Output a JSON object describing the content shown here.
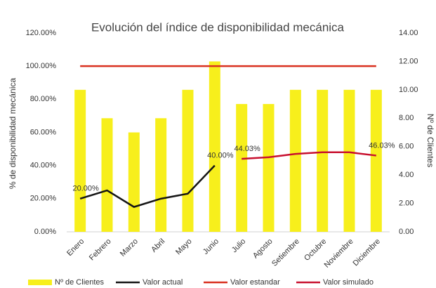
{
  "chart_data": {
    "type": "bar",
    "title": "Evolución del índice de disponibilidad mecánica",
    "y_label": "% de disponibilidad mecánica",
    "y2_label": "Nº de Clientes",
    "categories": [
      "Enero",
      "Febrero",
      "Marzo",
      "Abril",
      "Mayo",
      "Junio",
      "Julio",
      "Agosto",
      "Setiembre",
      "Octubre",
      "Noviembre",
      "Diciembre"
    ],
    "ylim": [
      0,
      120
    ],
    "yticks": [
      {
        "value": 0,
        "label": "0.00%"
      },
      {
        "value": 20,
        "label": "20.00%"
      },
      {
        "value": 40,
        "label": "40.00%"
      },
      {
        "value": 60,
        "label": "60.00%"
      },
      {
        "value": 80,
        "label": "80.00%"
      },
      {
        "value": 100,
        "label": "100.00%"
      },
      {
        "value": 120,
        "label": "120.00%"
      }
    ],
    "y2lim": [
      0,
      14
    ],
    "y2ticks": [
      {
        "value": 0,
        "label": "0.00"
      },
      {
        "value": 2,
        "label": "2.00"
      },
      {
        "value": 4,
        "label": "4.00"
      },
      {
        "value": 6,
        "label": "6.00"
      },
      {
        "value": 8,
        "label": "8.00"
      },
      {
        "value": 10,
        "label": "10.00"
      },
      {
        "value": 12,
        "label": "12.00"
      },
      {
        "value": 14,
        "label": "14.00"
      }
    ],
    "legend": "bottom",
    "series": [
      {
        "name": "Nº de Clientes",
        "type": "bar",
        "axis": "y2",
        "color": "#f7ef1c",
        "values": [
          10,
          8,
          7,
          8,
          10,
          12,
          9,
          9,
          10,
          10,
          10,
          10
        ]
      },
      {
        "name": "Valor actual",
        "type": "line",
        "axis": "y",
        "color": "#151515",
        "values": [
          20,
          25,
          15,
          20,
          23,
          40,
          null,
          null,
          null,
          null,
          null,
          null
        ],
        "value_labels": [
          "20.00%",
          null,
          null,
          null,
          null,
          "40.00%",
          null,
          null,
          null,
          null,
          null,
          null
        ]
      },
      {
        "name": "Valor estandar",
        "type": "line",
        "axis": "y",
        "color": "#d9301f",
        "values": [
          100,
          100,
          100,
          100,
          100,
          100,
          100,
          100,
          100,
          100,
          100,
          100
        ]
      },
      {
        "name": "Valor simulado",
        "type": "line",
        "axis": "y",
        "color": "#c8102e",
        "values": [
          null,
          null,
          null,
          null,
          null,
          null,
          44.03,
          45,
          47,
          48,
          48,
          46.03
        ],
        "value_labels": [
          null,
          null,
          null,
          null,
          null,
          null,
          "44.03%",
          null,
          null,
          null,
          null,
          "46.03%"
        ]
      }
    ]
  }
}
